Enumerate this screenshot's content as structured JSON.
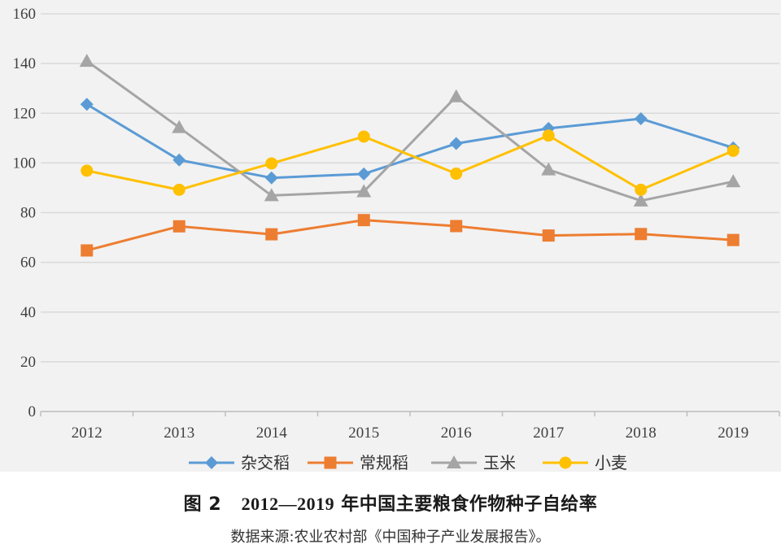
{
  "chart_data": {
    "type": "line",
    "categories": [
      "2012",
      "2013",
      "2014",
      "2015",
      "2016",
      "2017",
      "2018",
      "2019"
    ],
    "ylim": [
      0,
      160
    ],
    "yticks": [
      0,
      20,
      40,
      60,
      80,
      100,
      120,
      140,
      160
    ],
    "grid": true,
    "legend_position": "bottom",
    "series": [
      {
        "name": "杂交稻",
        "marker": "diamond",
        "color": "#5b9bd5",
        "values": [
          123.6,
          101.2,
          94.0,
          95.6,
          107.8,
          113.9,
          117.8,
          106.1
        ]
      },
      {
        "name": "常规稻",
        "marker": "square",
        "color": "#ed7d31",
        "values": [
          64.8,
          74.5,
          71.3,
          77.0,
          74.6,
          70.8,
          71.4,
          69.0
        ]
      },
      {
        "name": "玉米",
        "marker": "triangle",
        "color": "#a5a5a5",
        "values": [
          141.0,
          114.3,
          86.9,
          88.5,
          126.7,
          97.3,
          84.8,
          92.5
        ]
      },
      {
        "name": "小麦",
        "marker": "circle",
        "color": "#ffc000",
        "values": [
          96.9,
          89.2,
          99.8,
          110.6,
          95.7,
          111.0,
          89.2,
          104.9
        ]
      }
    ]
  },
  "caption": {
    "figure_label": "图 2",
    "year_range": "2012—2019",
    "title_text": "年中国主要粮食作物种子自给率",
    "source": "数据来源:农业农村部《中国种子产业发展报告》。"
  }
}
